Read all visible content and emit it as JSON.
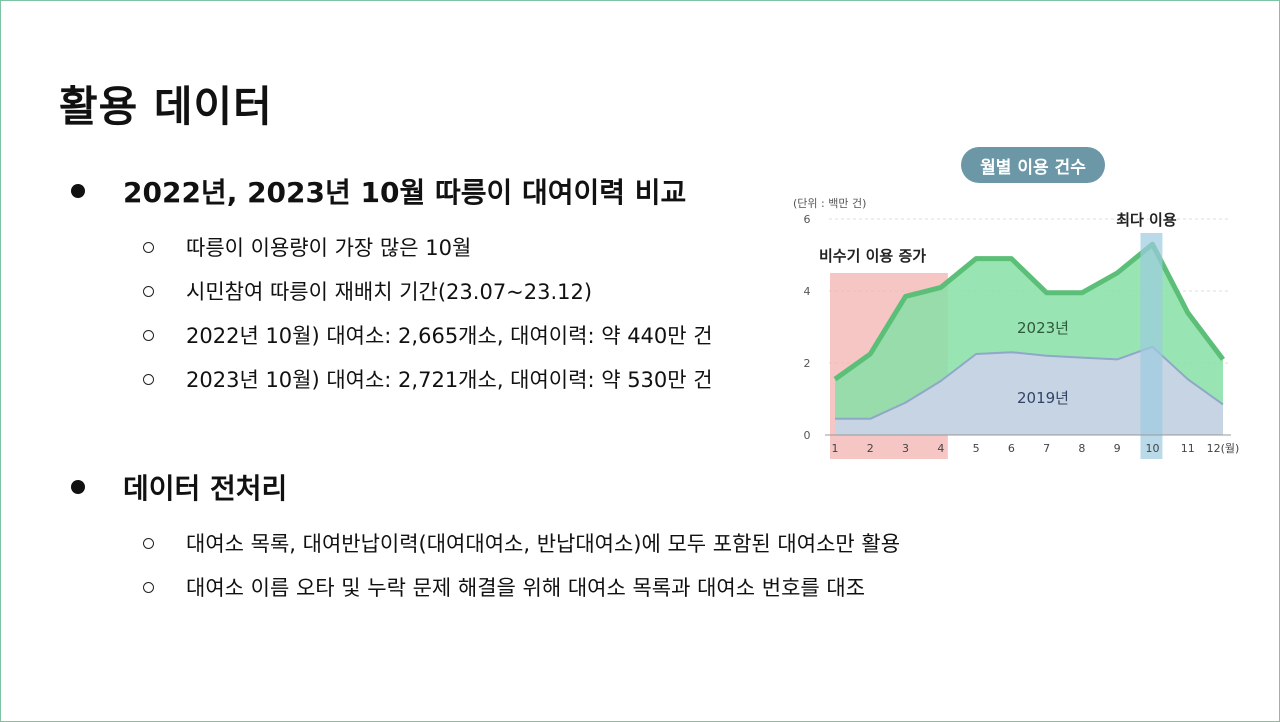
{
  "slide": {
    "title": "활용 데이터"
  },
  "sections": [
    {
      "heading": "2022년, 2023년 10월 따릉이 대여이력 비교",
      "items": [
        "따릉이 이용량이 가장 많은 10월",
        "시민참여 따릉이 재배치 기간(23.07~23.12)",
        "2022년 10월) 대여소: 2,665개소, 대여이력: 약 440만 건",
        "2023년 10월) 대여소: 2,721개소, 대여이력: 약 530만 건"
      ]
    },
    {
      "heading": "데이터 전처리",
      "items": [
        "대여소 목록, 대여반납이력(대여대여소, 반납대여소)에 모두 포함된 대여소만 활용",
        "대여소 이름 오타 및 누락 문제 해결을 위해 대여소 목록과 대여소 번호를 대조"
      ]
    }
  ],
  "chart_data": {
    "type": "area",
    "title": "월별 이용 건수",
    "unit_label": "(단위 : 백만 건)",
    "x": [
      "1",
      "2",
      "3",
      "4",
      "5",
      "6",
      "7",
      "8",
      "9",
      "10",
      "11",
      "12(월)"
    ],
    "ylim": [
      0,
      6
    ],
    "y_ticks": [
      "0",
      "2",
      "4",
      "6"
    ],
    "series": [
      {
        "name": "2023년",
        "values": [
          1.55,
          2.25,
          3.85,
          4.1,
          4.9,
          4.9,
          3.95,
          3.95,
          4.5,
          5.3,
          3.4,
          2.1
        ],
        "color": "#86dfa6",
        "line_color": "#5cbf78"
      },
      {
        "name": "2019년",
        "values": [
          0.45,
          0.45,
          0.9,
          1.5,
          2.25,
          2.3,
          2.2,
          2.15,
          2.1,
          2.45,
          1.55,
          0.85
        ],
        "color": "#c9d3e6",
        "line_color": "#8fa8c8"
      }
    ],
    "annotations": {
      "offseason_label": "비수기 이용 증가",
      "offseason_range": [
        "1",
        "4"
      ],
      "offseason_color": "#f2b8b5",
      "peak_label": "최다 이용",
      "peak_month": "10",
      "peak_color": "#9ccbe0"
    },
    "grid": true
  }
}
